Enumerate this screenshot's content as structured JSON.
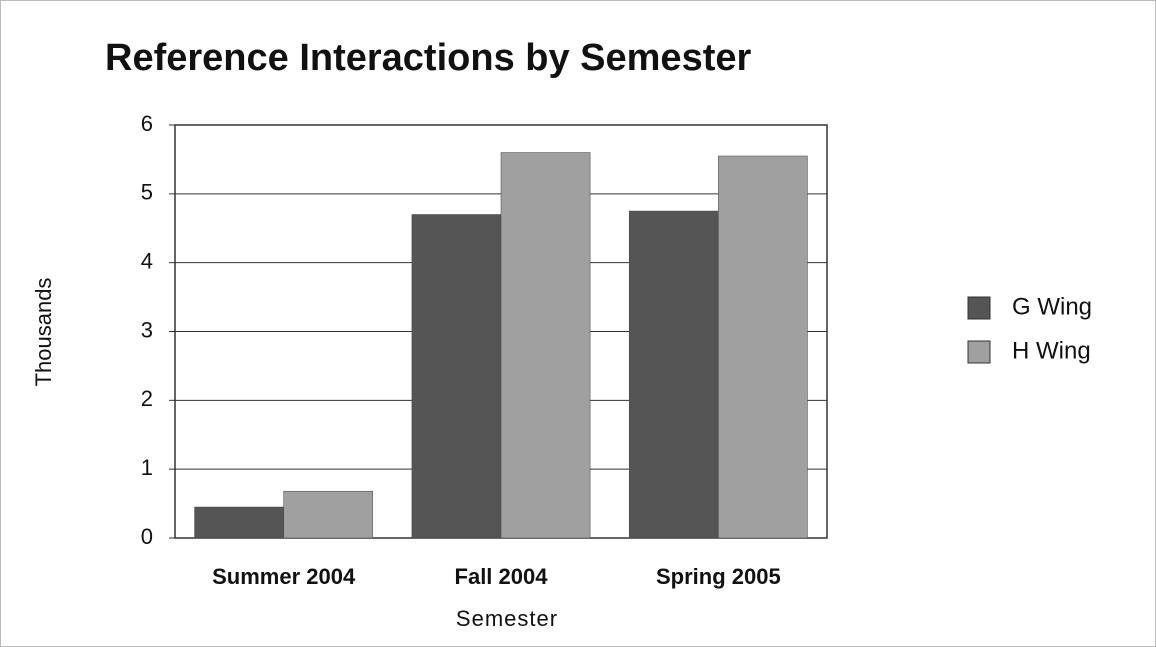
{
  "chart_data": {
    "type": "bar",
    "title": "Reference Interactions by Semester",
    "x_label": "Semester",
    "y_label": "Thousands",
    "categories": [
      "Summer 2004",
      "Fall 2004",
      "Spring 2005"
    ],
    "series": [
      {
        "name": "G Wing",
        "color": "#555555",
        "values": [
          0.45,
          4.7,
          4.75
        ]
      },
      {
        "name": "H Wing",
        "color": "#a0a0a0",
        "values": [
          0.68,
          5.6,
          5.55
        ]
      }
    ],
    "ylim": [
      0,
      6
    ],
    "yticks": [
      0,
      1,
      2,
      3,
      4,
      5,
      6
    ],
    "grid": true,
    "legend": "right"
  }
}
